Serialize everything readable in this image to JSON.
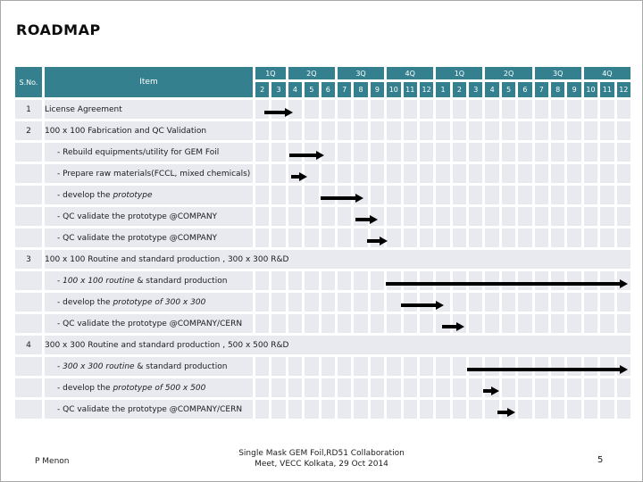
{
  "title": "ROADMAP",
  "colors": {
    "header_teal": "#35808F",
    "row_bg": "#E9E9F0",
    "arrow": "#000000"
  },
  "table": {
    "sno_header": "S.No.",
    "item_header": "Item",
    "years": [
      {
        "quarters": [
          {
            "label": "1Q",
            "months": [
              "2",
              "3"
            ]
          },
          {
            "label": "2Q",
            "months": [
              "4",
              "5",
              "6"
            ]
          },
          {
            "label": "3Q",
            "months": [
              "7",
              "8",
              "9"
            ]
          },
          {
            "label": "4Q",
            "months": [
              "10",
              "11",
              "12"
            ]
          }
        ]
      },
      {
        "quarters": [
          {
            "label": "1Q",
            "months": [
              "1",
              "2",
              "3"
            ]
          },
          {
            "label": "2Q",
            "months": [
              "4",
              "5",
              "6"
            ]
          },
          {
            "label": "3Q",
            "months": [
              "7",
              "8",
              "9"
            ]
          },
          {
            "label": "4Q",
            "months": [
              "10",
              "11",
              "12"
            ]
          }
        ]
      }
    ],
    "rows": [
      {
        "sno": "1",
        "merged": false,
        "sub": false,
        "segments": [
          {
            "t": "License Agreement"
          }
        ]
      },
      {
        "sno": "2",
        "merged": false,
        "sub": false,
        "segments": [
          {
            "t": "100 x 100 Fabrication and QC Validation"
          }
        ]
      },
      {
        "sno": "",
        "merged": false,
        "sub": true,
        "segments": [
          {
            "t": "- Rebuild equipments/utility for GEM Foil"
          }
        ]
      },
      {
        "sno": "",
        "merged": false,
        "sub": true,
        "segments": [
          {
            "t": "- Prepare raw materials(FCCL, mixed chemicals)"
          }
        ]
      },
      {
        "sno": "",
        "merged": false,
        "sub": true,
        "segments": [
          {
            "t": "- develop the "
          },
          {
            "t": "prototype",
            "i": true
          }
        ]
      },
      {
        "sno": "",
        "merged": false,
        "sub": true,
        "segments": [
          {
            "t": "- QC validate the prototype @COMPANY"
          }
        ]
      },
      {
        "sno": "",
        "merged": false,
        "sub": true,
        "segments": [
          {
            "t": "- QC validate the prototype @COMPANY"
          }
        ]
      },
      {
        "sno": "3",
        "merged": true,
        "sub": false,
        "segments": [
          {
            "t": "100 x 100 Routine and standard production , 300 x 300 R&D"
          }
        ]
      },
      {
        "sno": "",
        "merged": false,
        "sub": true,
        "segments": [
          {
            "t": "- "
          },
          {
            "t": "100 x 100 routine",
            "i": true
          },
          {
            "t": " & standard production"
          }
        ]
      },
      {
        "sno": "",
        "merged": false,
        "sub": true,
        "segments": [
          {
            "t": "- develop the "
          },
          {
            "t": "prototype of 300 x 300",
            "i": true
          }
        ]
      },
      {
        "sno": "",
        "merged": false,
        "sub": true,
        "segments": [
          {
            "t": "- QC validate the prototype @COMPANY/CERN"
          }
        ]
      },
      {
        "sno": "4",
        "merged": true,
        "sub": false,
        "segments": [
          {
            "t": "300 x 300 Routine and standard production , 500 x 500 R&D"
          }
        ]
      },
      {
        "sno": "",
        "merged": false,
        "sub": true,
        "segments": [
          {
            "t": "- "
          },
          {
            "t": "300 x 300 routine",
            "i": true
          },
          {
            "t": " & standard production"
          }
        ]
      },
      {
        "sno": "",
        "merged": false,
        "sub": true,
        "segments": [
          {
            "t": "- develop the "
          },
          {
            "t": "prototype of 500 x 500",
            "i": true
          }
        ]
      },
      {
        "sno": "",
        "merged": false,
        "sub": true,
        "segments": [
          {
            "t": "- QC validate the prototype @COMPANY/CERN"
          }
        ]
      }
    ]
  },
  "gantt_arrows": [
    {
      "row": 0,
      "start": 0.54,
      "end": 2.23
    },
    {
      "row": 2,
      "start": 2.07,
      "end": 4.13
    },
    {
      "row": 3,
      "start": 2.17,
      "end": 3.1
    },
    {
      "row": 4,
      "start": 3.97,
      "end": 6.52
    },
    {
      "row": 5,
      "start": 6.09,
      "end": 7.39
    },
    {
      "row": 6,
      "start": 6.79,
      "end": 7.99
    },
    {
      "row": 8,
      "start": 7.93,
      "end": 22.6
    },
    {
      "row": 9,
      "start": 8.86,
      "end": 11.41
    },
    {
      "row": 10,
      "start": 11.36,
      "end": 12.66
    },
    {
      "row": 12,
      "start": 12.88,
      "end": 22.6
    },
    {
      "row": 13,
      "start": 13.86,
      "end": 14.78
    },
    {
      "row": 14,
      "start": 14.73,
      "end": 15.76
    }
  ],
  "footer": {
    "author": "P Menon",
    "center_line1": "Single Mask GEM Foil,RD51 Collaboration",
    "center_line2": "Meet, VECC Kolkata, 29 Oct 2014",
    "page": "5"
  }
}
